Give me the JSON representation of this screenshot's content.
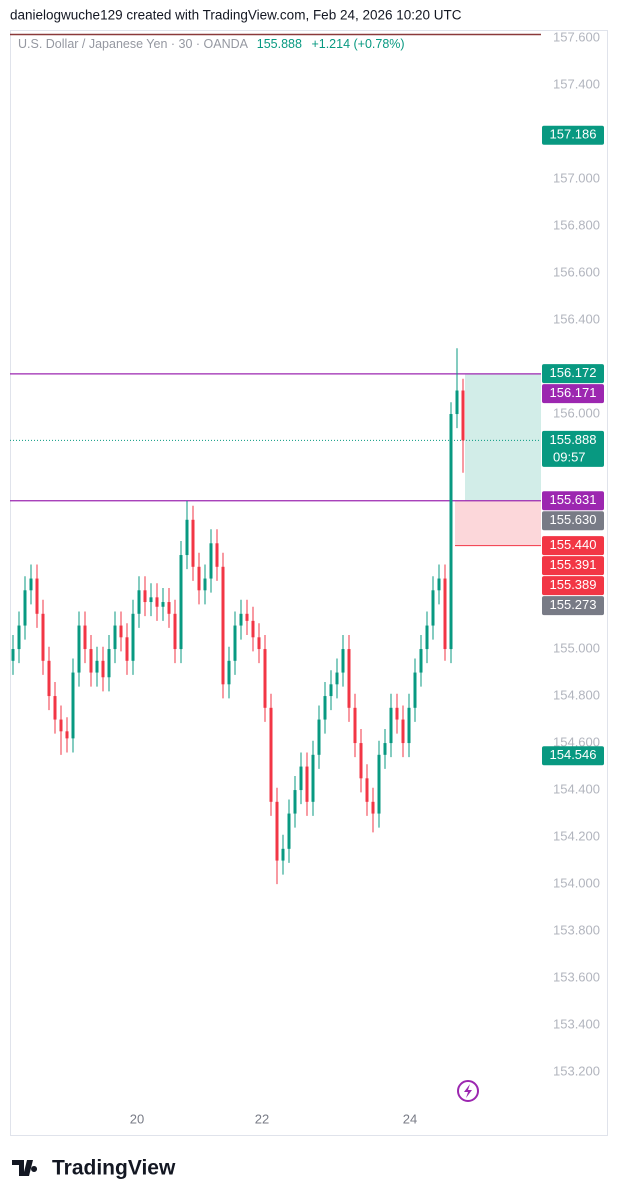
{
  "header": {
    "credit": "danielogwuche129 created with TradingView.com, Feb 24, 2026 10:20 UTC",
    "symbol": "U.S. Dollar / Japanese Yen · 30 · OANDA",
    "price": "155.888",
    "change": "+1.214 (+0.78%)"
  },
  "chart_data": {
    "type": "candlestick",
    "open": [
      154.95,
      155.0,
      155.1,
      155.25,
      155.3,
      155.15,
      154.95,
      154.8,
      154.7,
      154.65,
      154.62,
      154.9,
      155.1,
      155.0,
      154.9,
      154.95,
      154.88,
      155.0,
      155.1,
      155.05,
      154.95,
      155.15,
      155.25,
      155.2,
      155.22,
      155.18,
      155.2,
      155.15,
      155.0,
      155.4,
      155.55,
      155.35,
      155.25,
      155.3,
      155.45,
      155.35,
      154.85,
      154.95,
      155.1,
      155.15,
      155.12,
      155.05,
      155.0,
      154.75,
      154.35,
      154.1,
      154.15,
      154.3,
      154.4,
      154.5,
      154.35,
      154.55,
      154.7,
      154.8,
      154.85,
      154.9,
      155.0,
      154.75,
      154.6,
      154.45,
      154.35,
      154.3,
      154.55,
      154.6,
      154.75,
      154.7,
      154.6,
      154.75,
      154.9,
      155.0,
      155.1,
      155.25,
      155.3,
      155.0,
      156.0,
      156.1
    ],
    "high": [
      155.06,
      155.16,
      155.31,
      155.36,
      155.36,
      155.21,
      155.01,
      154.86,
      154.76,
      154.71,
      154.96,
      155.16,
      155.16,
      155.06,
      155.01,
      155.01,
      155.06,
      155.16,
      155.16,
      155.11,
      155.21,
      155.31,
      155.31,
      155.28,
      155.28,
      155.26,
      155.26,
      155.21,
      155.46,
      155.63,
      155.61,
      155.41,
      155.36,
      155.51,
      155.51,
      155.41,
      155.01,
      155.16,
      155.21,
      155.21,
      155.18,
      155.11,
      155.06,
      154.81,
      154.41,
      154.21,
      154.36,
      154.46,
      154.56,
      154.56,
      154.61,
      154.76,
      154.86,
      154.91,
      154.96,
      155.06,
      155.06,
      154.81,
      154.66,
      154.51,
      154.41,
      154.61,
      154.66,
      154.81,
      154.81,
      154.76,
      154.81,
      154.96,
      155.06,
      155.16,
      155.31,
      155.36,
      155.36,
      156.05,
      156.28,
      156.15
    ],
    "low": [
      154.89,
      154.94,
      155.04,
      155.19,
      155.09,
      154.89,
      154.74,
      154.64,
      154.55,
      154.56,
      154.56,
      154.84,
      154.94,
      154.84,
      154.84,
      154.82,
      154.82,
      154.94,
      154.99,
      154.89,
      154.89,
      155.09,
      155.14,
      155.14,
      155.12,
      155.12,
      155.09,
      154.94,
      154.94,
      155.34,
      155.29,
      155.19,
      155.19,
      155.24,
      155.29,
      154.79,
      154.79,
      154.89,
      155.04,
      155.06,
      154.99,
      154.94,
      154.69,
      154.29,
      154.0,
      154.04,
      154.09,
      154.24,
      154.34,
      154.29,
      154.29,
      154.49,
      154.64,
      154.74,
      154.79,
      154.84,
      154.69,
      154.54,
      154.39,
      154.29,
      154.22,
      154.24,
      154.49,
      154.54,
      154.64,
      154.54,
      154.54,
      154.69,
      154.84,
      154.94,
      155.04,
      155.19,
      154.95,
      154.94,
      155.94,
      155.75
    ],
    "close": [
      155.0,
      155.1,
      155.25,
      155.3,
      155.15,
      154.95,
      154.8,
      154.7,
      154.65,
      154.62,
      154.9,
      155.1,
      155.0,
      154.9,
      154.95,
      154.88,
      155.0,
      155.1,
      155.05,
      154.95,
      155.15,
      155.25,
      155.2,
      155.22,
      155.18,
      155.2,
      155.15,
      155.0,
      155.4,
      155.55,
      155.35,
      155.25,
      155.3,
      155.45,
      155.35,
      154.85,
      154.95,
      155.1,
      155.15,
      155.12,
      155.05,
      155.0,
      154.75,
      154.35,
      154.1,
      154.15,
      154.3,
      154.4,
      154.5,
      154.35,
      154.55,
      154.7,
      154.8,
      154.85,
      154.9,
      155.0,
      154.75,
      154.6,
      154.45,
      154.35,
      154.3,
      154.55,
      154.6,
      154.75,
      154.7,
      154.6,
      154.75,
      154.9,
      155.0,
      155.1,
      155.25,
      155.3,
      155.0,
      156.0,
      156.1,
      155.888
    ],
    "up_color": "#089981",
    "down_color": "#f23645",
    "ylim": [
      153.06,
      157.634
    ],
    "yticks": [
      {
        "value": 157.6,
        "label": "157.600"
      },
      {
        "value": 157.4,
        "label": "157.400"
      },
      {
        "value": 157.0,
        "label": "157.000"
      },
      {
        "value": 156.8,
        "label": "156.800"
      },
      {
        "value": 156.6,
        "label": "156.600"
      },
      {
        "value": 156.4,
        "label": "156.400"
      },
      {
        "value": 156.0,
        "label": "156.000"
      },
      {
        "value": 155.0,
        "label": "155.000"
      },
      {
        "value": 154.8,
        "label": "154.800"
      },
      {
        "value": 154.6,
        "label": "154.600"
      },
      {
        "value": 154.4,
        "label": "154.400"
      },
      {
        "value": 154.2,
        "label": "154.200"
      },
      {
        "value": 154.0,
        "label": "154.000"
      },
      {
        "value": 153.8,
        "label": "153.800"
      },
      {
        "value": 153.6,
        "label": "153.600"
      },
      {
        "value": 153.4,
        "label": "153.400"
      },
      {
        "value": 153.2,
        "label": "153.200"
      }
    ],
    "xticks": [
      {
        "value": 20.67,
        "label": "20"
      },
      {
        "value": 41.5,
        "label": "22"
      },
      {
        "value": 66.17,
        "label": "24"
      }
    ],
    "levels": [
      {
        "value": 156.171,
        "color": "#9c27b0"
      },
      {
        "value": 155.631,
        "color": "#9c27b0"
      }
    ],
    "last_price": 155.888,
    "position": {
      "entry": 155.631,
      "target": 156.171,
      "stop": 155.44
    },
    "price_badges": [
      {
        "value": 157.186,
        "label": "157.186",
        "color": "#089981"
      },
      {
        "value": 156.172,
        "label": "156.172",
        "color": "#089981"
      },
      {
        "value": 156.171,
        "label": "156.171",
        "color": "#9c27b0"
      },
      {
        "value": 155.888,
        "label": "155.888",
        "color": "#089981",
        "sub": "09:57"
      },
      {
        "value": 155.631,
        "label": "155.631",
        "color": "#9c27b0"
      },
      {
        "value": 155.63,
        "label": "155.630",
        "color": "#787b86"
      },
      {
        "value": 155.44,
        "label": "155.440",
        "color": "#f23645"
      },
      {
        "value": 155.391,
        "label": "155.391",
        "color": "#f23645"
      },
      {
        "value": 155.389,
        "label": "155.389",
        "color": "#f23645"
      },
      {
        "value": 155.273,
        "label": "155.273",
        "color": "#787b86"
      },
      {
        "value": 154.546,
        "label": "154.546",
        "color": "#089981"
      }
    ]
  },
  "footer": {
    "logo": "TradingView"
  }
}
